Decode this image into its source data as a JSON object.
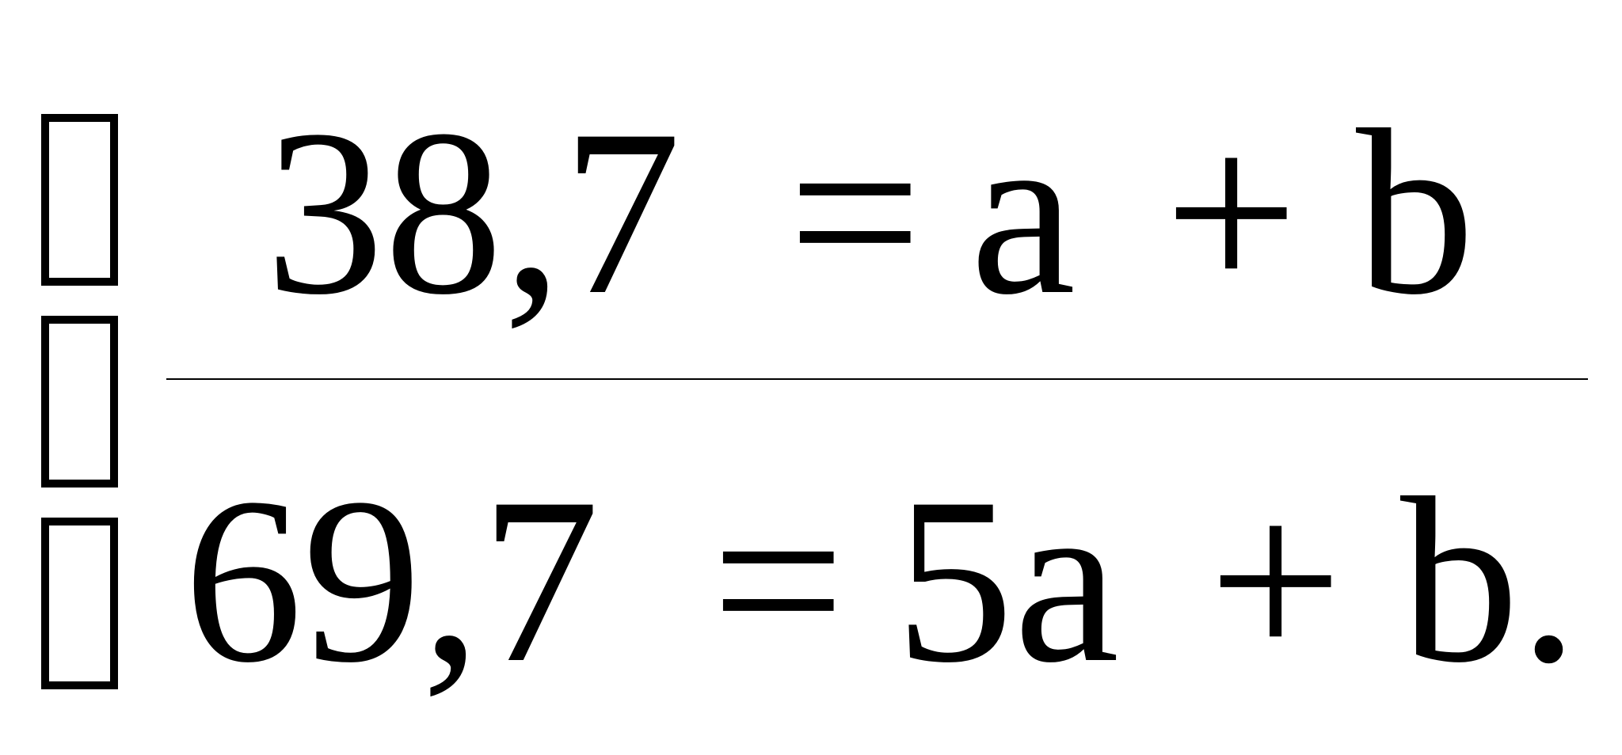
{
  "brace_glyphs": [
    "missing-glyph-box",
    "missing-glyph-box",
    "missing-glyph-box"
  ],
  "equation_1": {
    "lhs": "38,7",
    "eq": "=",
    "term1": "a",
    "op": "+",
    "term2": "b"
  },
  "equation_2": {
    "lhs": "69,7",
    "eq": "=",
    "term1": "5a",
    "op": "+",
    "term2": "b."
  }
}
